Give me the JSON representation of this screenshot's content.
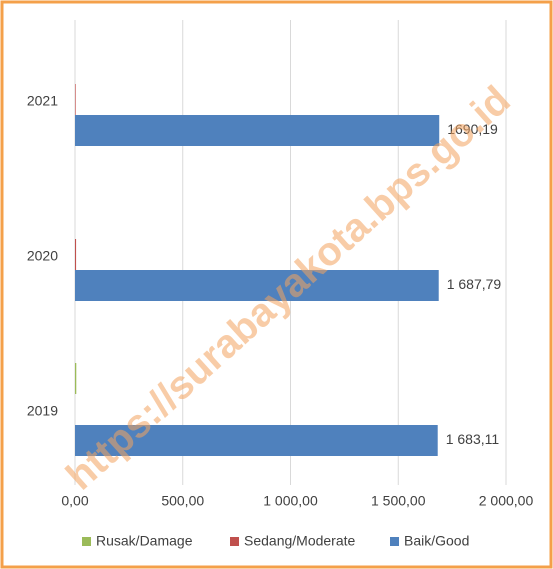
{
  "chart_data": {
    "type": "bar",
    "orientation": "horizontal",
    "categories": [
      "2019",
      "2020",
      "2021"
    ],
    "series": [
      {
        "name": "Rusak/Damage",
        "color": "#9bbb59",
        "values": [
          6,
          0,
          0
        ]
      },
      {
        "name": "Sedang/Moderate",
        "color": "#c0504d",
        "values": [
          0,
          5,
          3
        ]
      },
      {
        "name": "Baik/Good",
        "color": "#4f81bd",
        "values": [
          1683.11,
          1687.79,
          1690.19
        ],
        "value_labels": [
          "1 683,11",
          "1 687,79",
          "1690,19"
        ]
      }
    ],
    "xlim": [
      0,
      2000
    ],
    "xticks": [
      {
        "value": 0,
        "label": "0,00"
      },
      {
        "value": 500,
        "label": "500,00"
      },
      {
        "value": 1000,
        "label": "1 000,00"
      },
      {
        "value": 1500,
        "label": "1 500,00"
      },
      {
        "value": 2000,
        "label": "2 000,00"
      }
    ],
    "grid": true,
    "legend": "bottom",
    "watermark": "https://surabayakota.bps.go.id",
    "border_color": "#f4a04a"
  }
}
